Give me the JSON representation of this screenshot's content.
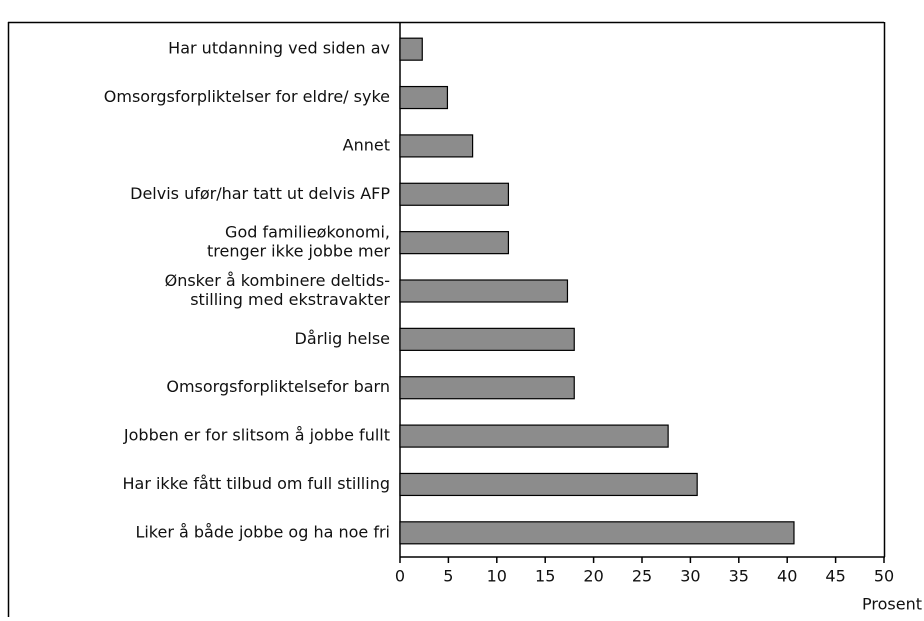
{
  "chart_data": {
    "type": "barh",
    "categories": [
      [
        "Har utdanning ved siden av"
      ],
      [
        "Omsorgsforpliktelser for eldre/ syke"
      ],
      [
        "Annet"
      ],
      [
        "Delvis ufør/har tatt ut delvis AFP"
      ],
      [
        "God familieøkonomi,",
        "trenger ikke jobbe mer"
      ],
      [
        "Ønsker å kombinere  deltids-",
        "stilling med ekstravakter"
      ],
      [
        "Dårlig helse"
      ],
      [
        "Omsorgsforpliktelsefor barn"
      ],
      [
        "Jobben er for slitsom å jobbe fullt"
      ],
      [
        "Har ikke fått tilbud om full stilling"
      ],
      [
        "Liker å både  jobbe og ha noe fri"
      ]
    ],
    "values": [
      2.3,
      4.9,
      7.5,
      11.2,
      11.2,
      17.3,
      18.0,
      18.0,
      27.7,
      30.7,
      40.7
    ],
    "color": "#8c8c8c",
    "xlim": [
      0,
      50
    ],
    "xticks": [
      0,
      5,
      10,
      15,
      20,
      25,
      30,
      35,
      40,
      45,
      50
    ],
    "xlabel": "Prosent",
    "grid": false
  }
}
